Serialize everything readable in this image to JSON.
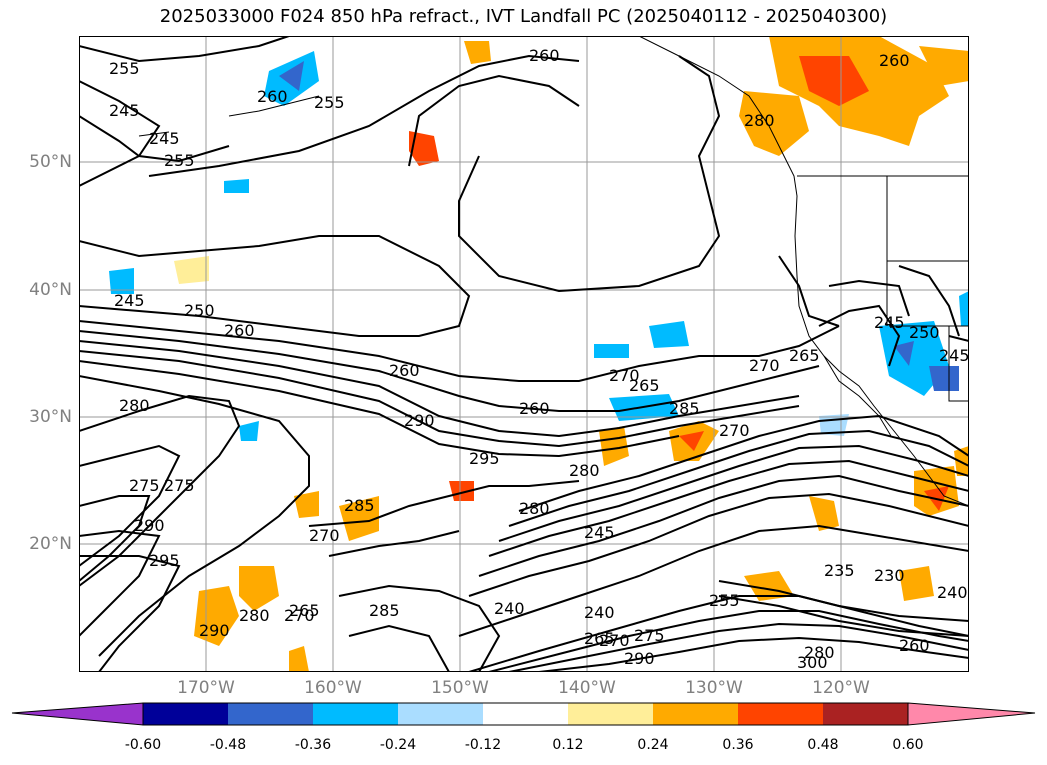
{
  "title": "2025033000 F024 850 hPa refract., IVT Landfall PC (2025040112 - 2025040300)",
  "axes": {
    "lat_labels": [
      "50°N",
      "40°N",
      "30°N",
      "20°N"
    ],
    "lon_labels": [
      "170°W",
      "160°W",
      "150°W",
      "140°W",
      "130°W",
      "120°W"
    ]
  },
  "contour_labels": [
    "255",
    "245",
    "245",
    "255",
    "260",
    "255",
    "260",
    "260",
    "250",
    "245",
    "260",
    "260",
    "280",
    "290",
    "270",
    "265",
    "270",
    "265",
    "245",
    "250",
    "245",
    "280",
    "275",
    "275",
    "295",
    "260",
    "285",
    "270",
    "290",
    "280",
    "280",
    "245",
    "240",
    "240",
    "235",
    "230",
    "255",
    "260",
    "265",
    "270",
    "275",
    "280",
    "290",
    "300",
    "240",
    "270",
    "295",
    "285",
    "290",
    "285",
    "280",
    "265",
    "270"
  ],
  "colorbar": {
    "tick_labels": [
      "-0.60",
      "-0.48",
      "-0.36",
      "-0.24",
      "-0.12",
      "0.12",
      "0.24",
      "0.36",
      "0.48",
      "0.60"
    ],
    "colors": [
      "#9933cc",
      "#000099",
      "#3366cc",
      "#00bbff",
      "#aaddff",
      "#ffffff",
      "#ffee99",
      "#ffaa00",
      "#ff4400",
      "#aa2222",
      "#ff88aa"
    ]
  }
}
